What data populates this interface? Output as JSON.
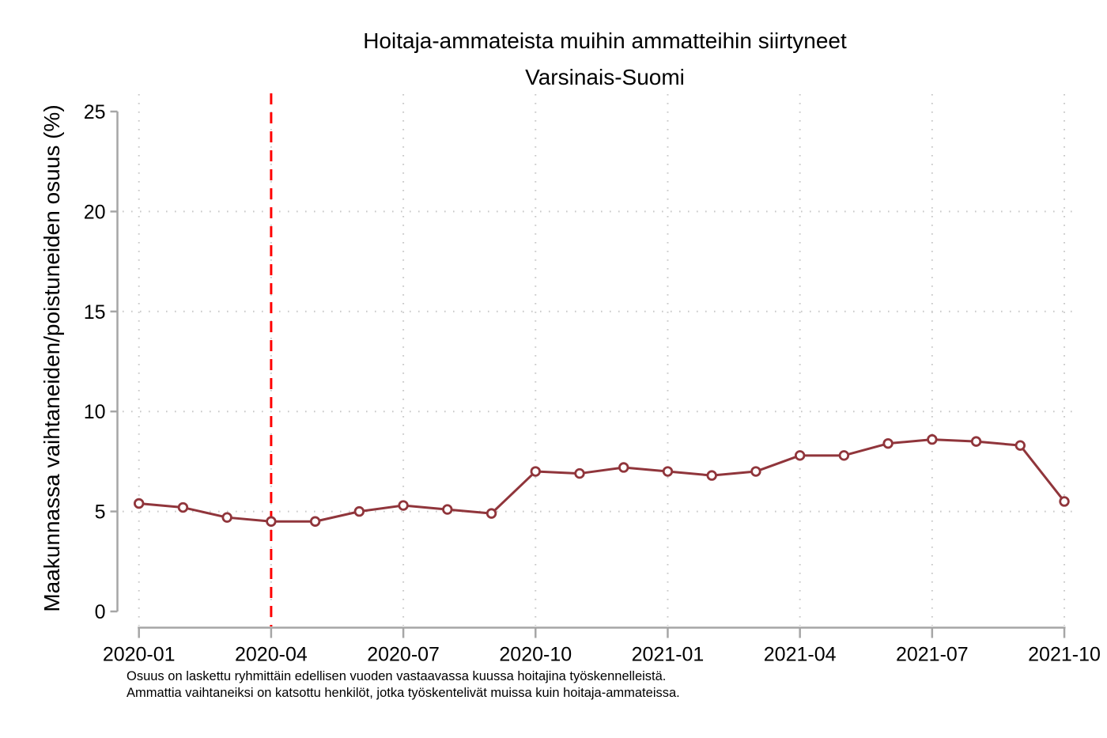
{
  "chart_data": {
    "type": "line",
    "title": "Hoitaja-ammateista muihin ammatteihin siirtyneet",
    "subtitle": "Varsinais-Suomi",
    "ylabel": "Maakunnassa vaihtaneiden/poistuneiden osuus (%)",
    "xlabel": "",
    "x": [
      "2020-01",
      "2020-02",
      "2020-03",
      "2020-04",
      "2020-05",
      "2020-06",
      "2020-07",
      "2020-08",
      "2020-09",
      "2020-10",
      "2020-11",
      "2020-12",
      "2021-01",
      "2021-02",
      "2021-03",
      "2021-04",
      "2021-05",
      "2021-06",
      "2021-07",
      "2021-08",
      "2021-09",
      "2021-10"
    ],
    "series": [
      {
        "name": "Varsinais-Suomi",
        "values": [
          5.4,
          5.2,
          4.7,
          4.5,
          4.5,
          5.0,
          5.3,
          5.1,
          4.9,
          7.0,
          6.9,
          7.2,
          7.0,
          6.8,
          7.0,
          7.8,
          7.8,
          8.4,
          8.6,
          8.5,
          8.3,
          5.5
        ]
      }
    ],
    "ylim": [
      0,
      25
    ],
    "yticks": [
      0,
      5,
      10,
      15,
      20,
      25
    ],
    "grid_y": [
      5,
      10,
      15,
      20
    ],
    "xtick_labels": [
      "2020-01",
      "2020-04",
      "2020-07",
      "2020-10",
      "2021-01",
      "2021-04",
      "2021-07",
      "2021-10"
    ],
    "grid": "dotted, horizontal at inner y ticks and vertical at labeled x ticks",
    "legend": "none",
    "vline_x": "2020-04",
    "marker": "open-circle",
    "colors": {
      "line": "#90353B",
      "marker_fill": "#ffffff",
      "vline": "#ff0000",
      "axis": "#a6a6a6",
      "gridline": "#c8c8c8",
      "text": "#000000"
    }
  },
  "notes": [
    "Osuus on laskettu ryhmittäin edellisen vuoden vastaavassa kuussa hoitajina työskennelleistä.",
    "Ammattia vaihtaneiksi on katsottu henkilöt, jotka työskentelivät muissa kuin hoitaja-ammateissa."
  ]
}
